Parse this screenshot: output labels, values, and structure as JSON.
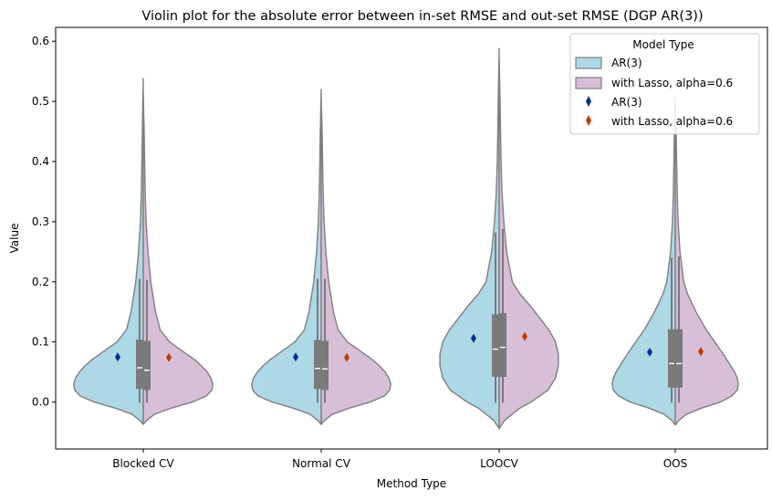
{
  "chart_data": {
    "type": "violin",
    "title": "Violin plot for the absolute error between in-set RMSE and out-set RMSE (DGP AR(3))",
    "xlabel": "Method Type",
    "ylabel": "Value",
    "categories": [
      "Blocked CV",
      "Normal CV",
      "LOOCV",
      "OOS"
    ],
    "ylim": [
      -0.078,
      0.623
    ],
    "yticks": [
      0.0,
      0.1,
      0.2,
      0.3,
      0.4,
      0.5,
      0.6
    ],
    "ytick_labels": [
      "0.0",
      "0.1",
      "0.2",
      "0.3",
      "0.4",
      "0.5",
      "0.6"
    ],
    "grid": false,
    "legend": {
      "title": "Model Type",
      "placement": "top-right",
      "entries": [
        {
          "label": "AR(3)",
          "kind": "violin",
          "color": "#add8e6"
        },
        {
          "label": "with Lasso, alpha=0.6",
          "kind": "violin",
          "color": "#d8bfd8"
        },
        {
          "label": "AR(3)",
          "kind": "mean-marker",
          "color": "#00308f"
        },
        {
          "label": "with Lasso, alpha=0.6",
          "kind": "mean-marker",
          "color": "#c23b00"
        }
      ]
    },
    "colors": {
      "ar3_fill": "#add8e6",
      "lasso_fill": "#d8bfd8",
      "violin_edge": "#7f7f7f",
      "box": "#7a7a7a",
      "ar3_mean_marker": "#00308f",
      "lasso_mean_marker": "#c23b00"
    },
    "series": [
      {
        "name": "AR(3)",
        "side": "left",
        "mean": [
          0.075,
          0.075,
          0.106,
          0.083
        ],
        "median": [
          0.057,
          0.056,
          0.088,
          0.064
        ],
        "q1": [
          0.022,
          0.022,
          0.042,
          0.024
        ],
        "q3": [
          0.104,
          0.103,
          0.146,
          0.121
        ],
        "whisker_low": [
          -0.001,
          -0.001,
          -0.001,
          -0.001
        ],
        "whisker_high": [
          0.205,
          0.205,
          0.282,
          0.24
        ],
        "kde_min": [
          -0.037,
          -0.037,
          -0.044,
          -0.038
        ],
        "kde_max": [
          0.538,
          0.52,
          0.588,
          0.507
        ],
        "profile": [
          [
            [
              -0.037,
              0
            ],
            [
              -0.03,
              4
            ],
            [
              -0.02,
              12
            ],
            [
              -0.01,
              30
            ],
            [
              0.0,
              52
            ],
            [
              0.01,
              67
            ],
            [
              0.02,
              73
            ],
            [
              0.03,
              74
            ],
            [
              0.04,
              72
            ],
            [
              0.05,
              68
            ],
            [
              0.06,
              62
            ],
            [
              0.07,
              55
            ],
            [
              0.08,
              46
            ],
            [
              0.09,
              37
            ],
            [
              0.1,
              28
            ],
            [
              0.12,
              18
            ],
            [
              0.15,
              13
            ],
            [
              0.18,
              10
            ],
            [
              0.2,
              8
            ],
            [
              0.25,
              5
            ],
            [
              0.3,
              3
            ],
            [
              0.35,
              2
            ],
            [
              0.4,
              1.5
            ],
            [
              0.45,
              1
            ],
            [
              0.538,
              0
            ]
          ],
          [
            [
              -0.037,
              0
            ],
            [
              -0.03,
              4
            ],
            [
              -0.02,
              12
            ],
            [
              -0.01,
              30
            ],
            [
              0.0,
              52
            ],
            [
              0.01,
              67
            ],
            [
              0.02,
              73
            ],
            [
              0.03,
              74
            ],
            [
              0.04,
              72
            ],
            [
              0.05,
              68
            ],
            [
              0.06,
              62
            ],
            [
              0.07,
              55
            ],
            [
              0.08,
              46
            ],
            [
              0.09,
              37
            ],
            [
              0.1,
              28
            ],
            [
              0.12,
              18
            ],
            [
              0.15,
              13
            ],
            [
              0.18,
              10
            ],
            [
              0.2,
              8
            ],
            [
              0.25,
              5
            ],
            [
              0.3,
              3
            ],
            [
              0.35,
              2
            ],
            [
              0.4,
              1.5
            ],
            [
              0.45,
              1
            ],
            [
              0.52,
              0
            ]
          ],
          [
            [
              -0.044,
              0
            ],
            [
              -0.03,
              6
            ],
            [
              -0.01,
              22
            ],
            [
              0.0,
              34
            ],
            [
              0.02,
              52
            ],
            [
              0.04,
              60
            ],
            [
              0.06,
              63
            ],
            [
              0.08,
              63
            ],
            [
              0.1,
              60
            ],
            [
              0.12,
              53
            ],
            [
              0.14,
              43
            ],
            [
              0.16,
              33
            ],
            [
              0.18,
              22
            ],
            [
              0.2,
              14
            ],
            [
              0.25,
              8
            ],
            [
              0.3,
              5
            ],
            [
              0.35,
              3
            ],
            [
              0.4,
              2
            ],
            [
              0.45,
              1.5
            ],
            [
              0.5,
              1
            ],
            [
              0.588,
              0
            ]
          ],
          [
            [
              -0.038,
              0
            ],
            [
              -0.03,
              4
            ],
            [
              -0.02,
              12
            ],
            [
              -0.01,
              28
            ],
            [
              0.0,
              48
            ],
            [
              0.01,
              60
            ],
            [
              0.02,
              66
            ],
            [
              0.03,
              67
            ],
            [
              0.04,
              66
            ],
            [
              0.05,
              63
            ],
            [
              0.06,
              59
            ],
            [
              0.08,
              51
            ],
            [
              0.1,
              42
            ],
            [
              0.12,
              33
            ],
            [
              0.15,
              22
            ],
            [
              0.18,
              13
            ],
            [
              0.2,
              9
            ],
            [
              0.25,
              5
            ],
            [
              0.3,
              3
            ],
            [
              0.35,
              2
            ],
            [
              0.4,
              1.5
            ],
            [
              0.45,
              1
            ],
            [
              0.507,
              0
            ]
          ]
        ]
      },
      {
        "name": "with Lasso, alpha=0.6",
        "side": "right",
        "mean": [
          0.074,
          0.074,
          0.109,
          0.084
        ],
        "median": [
          0.053,
          0.055,
          0.091,
          0.064
        ],
        "q1": [
          0.02,
          0.02,
          0.042,
          0.024
        ],
        "q3": [
          0.102,
          0.102,
          0.148,
          0.121
        ],
        "whisker_low": [
          -0.001,
          -0.001,
          -0.001,
          -0.001
        ],
        "whisker_high": [
          0.203,
          0.205,
          0.288,
          0.242
        ],
        "kde_min": [
          -0.037,
          -0.037,
          -0.044,
          -0.038
        ],
        "kde_max": [
          0.51,
          0.5,
          0.57,
          0.5
        ],
        "profile": [
          [
            [
              -0.037,
              0
            ],
            [
              -0.03,
              4
            ],
            [
              -0.02,
              12
            ],
            [
              -0.01,
              30
            ],
            [
              0.0,
              52
            ],
            [
              0.01,
              67
            ],
            [
              0.02,
              73
            ],
            [
              0.03,
              74
            ],
            [
              0.04,
              72
            ],
            [
              0.05,
              68
            ],
            [
              0.06,
              62
            ],
            [
              0.07,
              55
            ],
            [
              0.08,
              46
            ],
            [
              0.09,
              37
            ],
            [
              0.1,
              28
            ],
            [
              0.12,
              18
            ],
            [
              0.15,
              13
            ],
            [
              0.18,
              10
            ],
            [
              0.2,
              8
            ],
            [
              0.25,
              5
            ],
            [
              0.3,
              3
            ],
            [
              0.35,
              2
            ],
            [
              0.4,
              1.5
            ],
            [
              0.45,
              1
            ],
            [
              0.51,
              0
            ]
          ],
          [
            [
              -0.037,
              0
            ],
            [
              -0.03,
              4
            ],
            [
              -0.02,
              12
            ],
            [
              -0.01,
              30
            ],
            [
              0.0,
              52
            ],
            [
              0.01,
              67
            ],
            [
              0.02,
              73
            ],
            [
              0.03,
              74
            ],
            [
              0.04,
              72
            ],
            [
              0.05,
              68
            ],
            [
              0.06,
              62
            ],
            [
              0.07,
              55
            ],
            [
              0.08,
              46
            ],
            [
              0.09,
              37
            ],
            [
              0.1,
              28
            ],
            [
              0.12,
              18
            ],
            [
              0.15,
              13
            ],
            [
              0.18,
              10
            ],
            [
              0.2,
              8
            ],
            [
              0.25,
              5
            ],
            [
              0.3,
              3
            ],
            [
              0.35,
              2
            ],
            [
              0.4,
              1.5
            ],
            [
              0.45,
              1
            ],
            [
              0.5,
              0
            ]
          ],
          [
            [
              -0.044,
              0
            ],
            [
              -0.03,
              6
            ],
            [
              -0.01,
              22
            ],
            [
              0.0,
              34
            ],
            [
              0.02,
              52
            ],
            [
              0.04,
              60
            ],
            [
              0.06,
              63
            ],
            [
              0.08,
              63
            ],
            [
              0.1,
              60
            ],
            [
              0.12,
              53
            ],
            [
              0.14,
              43
            ],
            [
              0.16,
              33
            ],
            [
              0.18,
              22
            ],
            [
              0.2,
              14
            ],
            [
              0.25,
              8
            ],
            [
              0.3,
              5
            ],
            [
              0.35,
              3
            ],
            [
              0.4,
              2
            ],
            [
              0.45,
              1.5
            ],
            [
              0.5,
              1
            ],
            [
              0.57,
              0
            ]
          ],
          [
            [
              -0.038,
              0
            ],
            [
              -0.03,
              4
            ],
            [
              -0.02,
              12
            ],
            [
              -0.01,
              28
            ],
            [
              0.0,
              48
            ],
            [
              0.01,
              60
            ],
            [
              0.02,
              66
            ],
            [
              0.03,
              67
            ],
            [
              0.04,
              66
            ],
            [
              0.05,
              63
            ],
            [
              0.06,
              59
            ],
            [
              0.08,
              51
            ],
            [
              0.1,
              42
            ],
            [
              0.12,
              33
            ],
            [
              0.15,
              22
            ],
            [
              0.18,
              13
            ],
            [
              0.2,
              9
            ],
            [
              0.25,
              5
            ],
            [
              0.3,
              3
            ],
            [
              0.35,
              2
            ],
            [
              0.4,
              1.5
            ],
            [
              0.45,
              1
            ],
            [
              0.5,
              0
            ]
          ]
        ]
      }
    ]
  }
}
